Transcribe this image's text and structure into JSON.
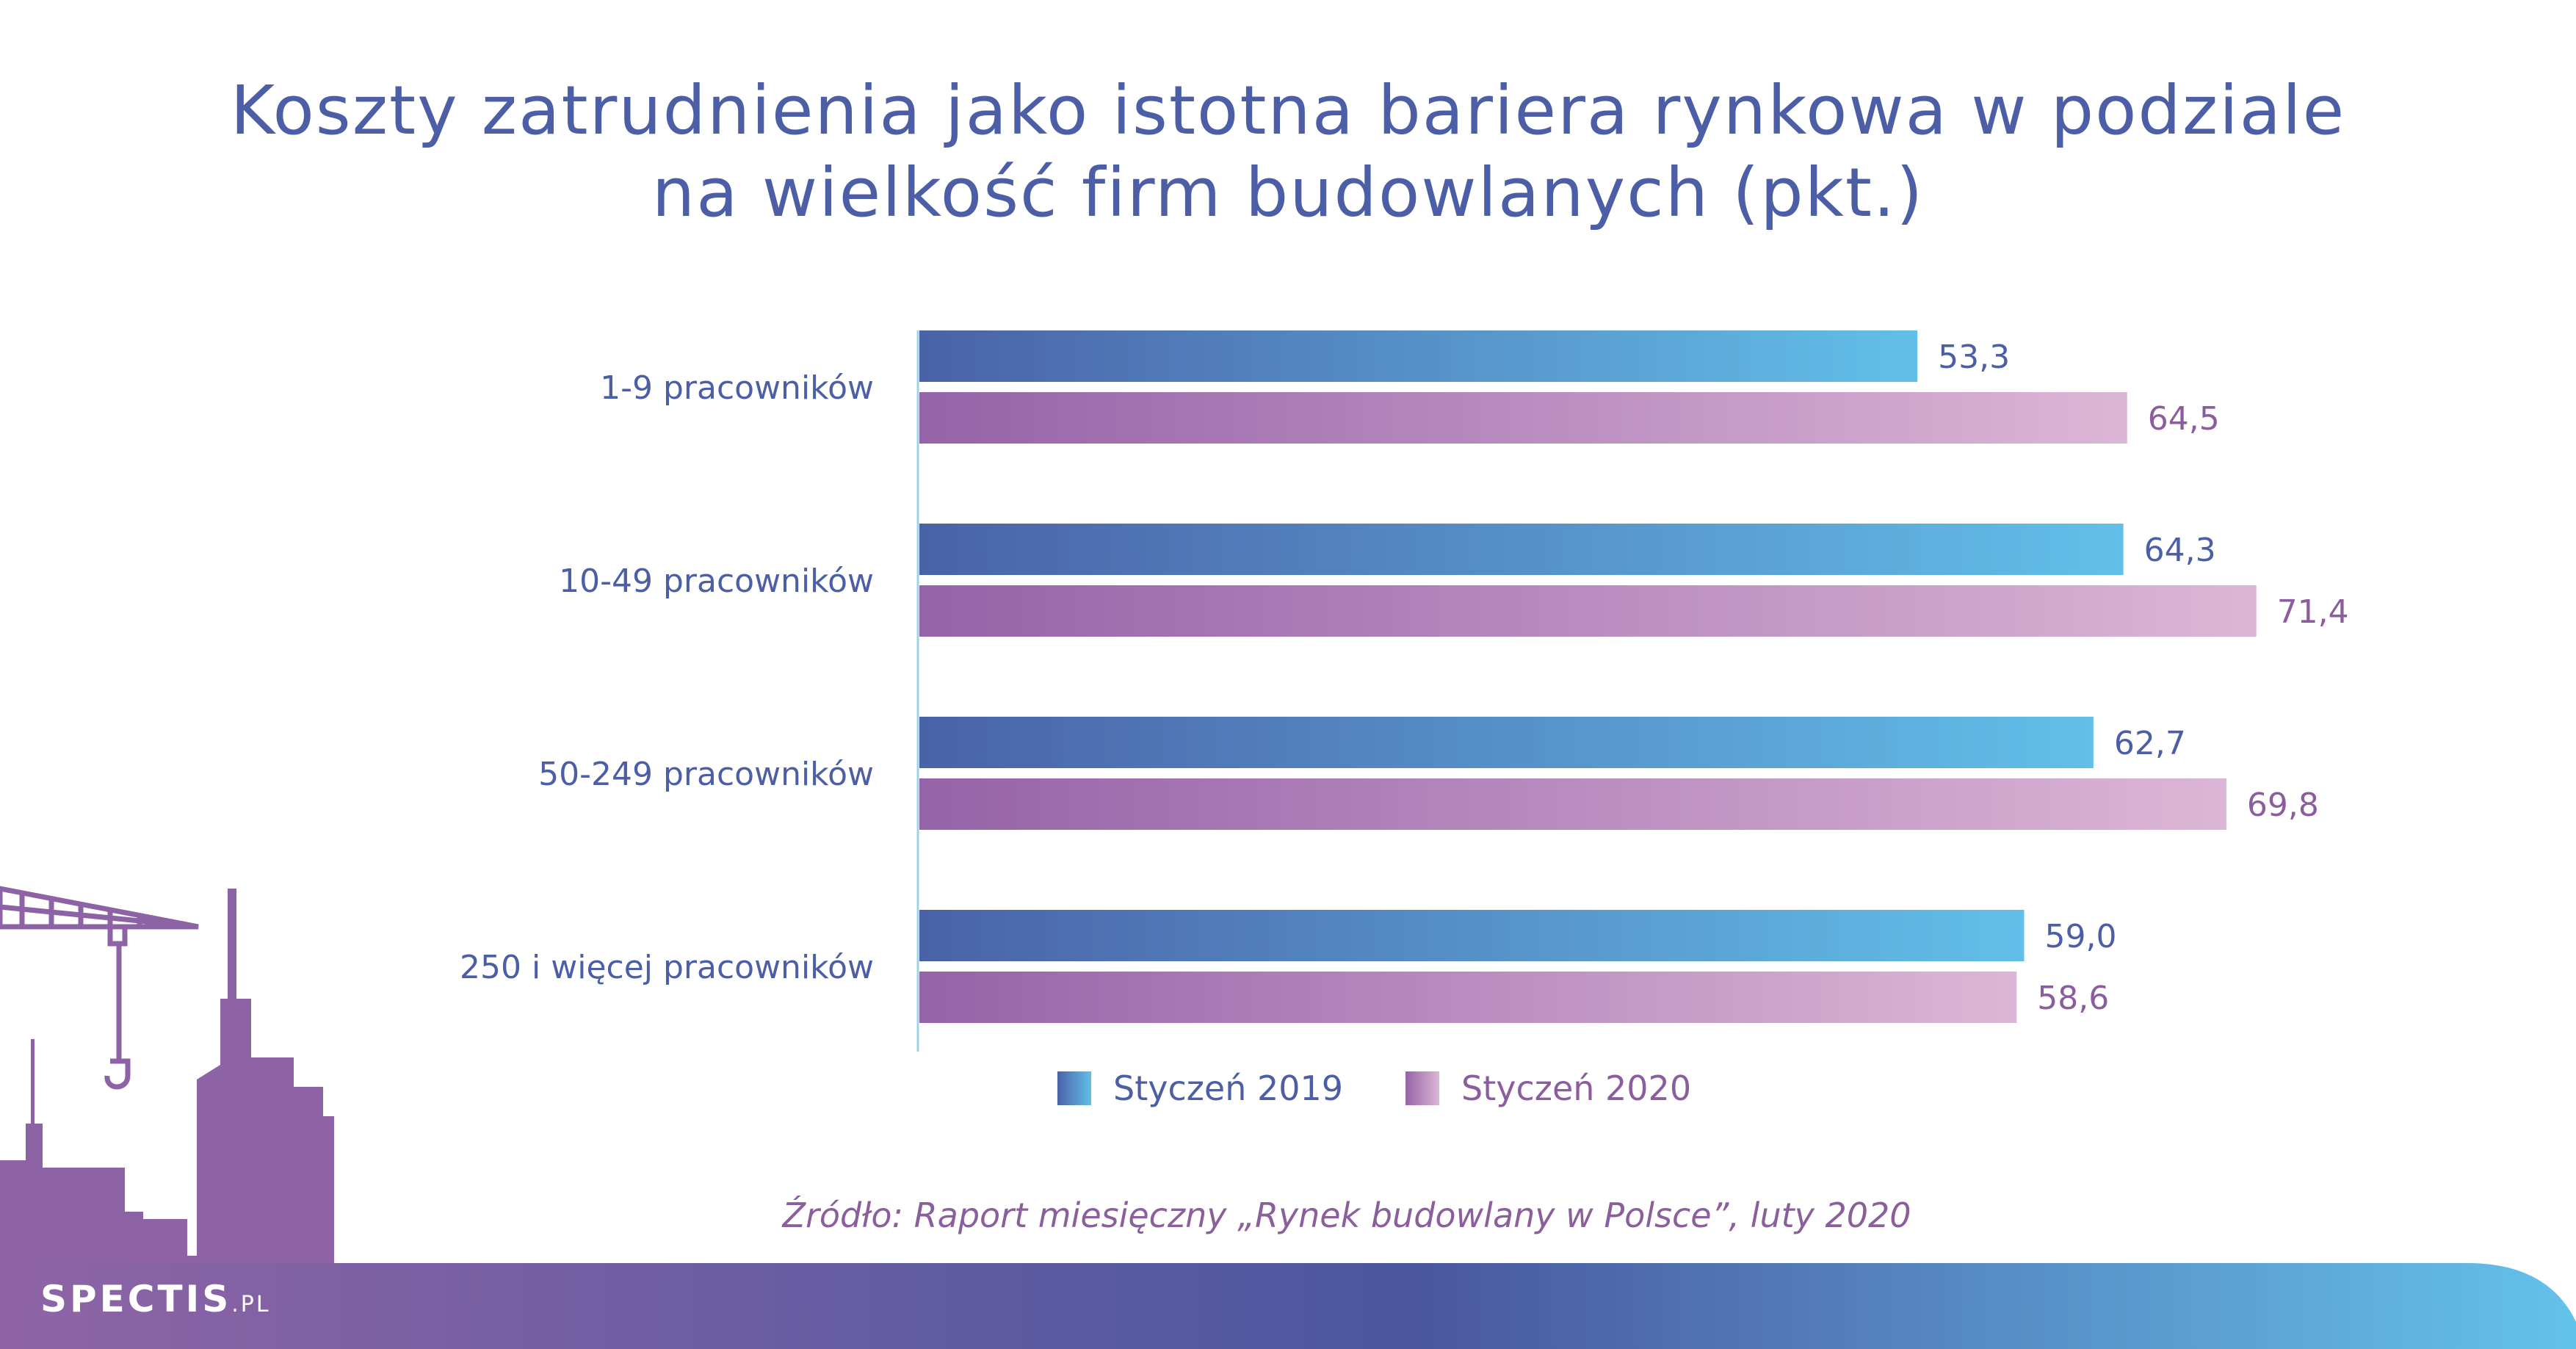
{
  "title": {
    "line1": "Koszty zatrudnienia jako istotna bariera rynkowa w podziale",
    "line2": "na wielkość firm budowlanych (pkt.)"
  },
  "chart_data": {
    "type": "bar",
    "orientation": "horizontal",
    "categories": [
      "1-9 pracowników",
      "10-49 pracowników",
      "50-249 pracowników",
      "250 i więcej pracowników"
    ],
    "series": [
      {
        "name": "Styczeń 2019",
        "values": [
          53.3,
          64.3,
          62.7,
          59.0
        ],
        "labels": [
          "53,3",
          "64,3",
          "62,7",
          "59,0"
        ]
      },
      {
        "name": "Styczeń 2020",
        "values": [
          64.5,
          71.4,
          69.8,
          58.6
        ],
        "labels": [
          "64,5",
          "71,4",
          "69,8",
          "58,6"
        ]
      }
    ],
    "xlim": [
      0,
      80
    ],
    "grid": false,
    "legend": "bottom-center",
    "colors": {
      "series0_start": "#4a62a8",
      "series0_end": "#62bfe8",
      "series1_start": "#9563a8",
      "series1_end": "#dcb6d6",
      "category_label": "#4b5ea6",
      "series0_label": "#4b5ea6",
      "series1_label": "#8c5d9e",
      "axis": "#9fd3e6"
    }
  },
  "legend": {
    "items": [
      "Styczeń 2019",
      "Styczeń 2020"
    ]
  },
  "source": "Źródło: Raport miesięczny „Rynek budowlany w Polsce”, luty 2020",
  "brand": {
    "name": "SPECTIS",
    "suffix": ".PL"
  }
}
